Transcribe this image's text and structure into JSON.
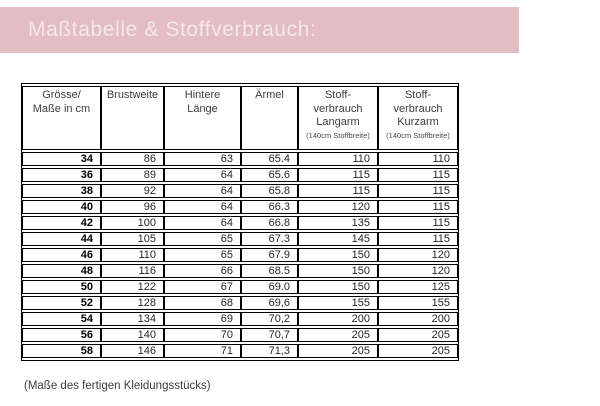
{
  "banner": {
    "title": "Maßtabelle & Stoffverbrauch:",
    "bg_color": "#e2bdc3",
    "text_color": "#f4e9ea"
  },
  "table": {
    "columns": [
      {
        "lines": [
          "Grösse/",
          "Maße in cm"
        ],
        "sub": ""
      },
      {
        "lines": [
          "Brustweite"
        ],
        "sub": ""
      },
      {
        "lines": [
          "Hintere",
          "Länge"
        ],
        "sub": ""
      },
      {
        "lines": [
          "Ärmel"
        ],
        "sub": ""
      },
      {
        "lines": [
          "Stoff-",
          "verbrauch",
          "Langarm"
        ],
        "sub": "(140cm Stoffbreite)"
      },
      {
        "lines": [
          "Stoff-",
          "verbrauch",
          "Kurzarm"
        ],
        "sub": "(140cm Stoffbreite)"
      }
    ],
    "rows": [
      [
        "34",
        "86",
        "63",
        "65.4",
        "110",
        "110"
      ],
      [
        "36",
        "89",
        "64",
        "65.6",
        "115",
        "115"
      ],
      [
        "38",
        "92",
        "64",
        "65.8",
        "115",
        "115"
      ],
      [
        "40",
        "96",
        "64",
        "66.3",
        "120",
        "115"
      ],
      [
        "42",
        "100",
        "64",
        "66.8",
        "135",
        "115"
      ],
      [
        "44",
        "105",
        "65",
        "67.3",
        "145",
        "115"
      ],
      [
        "46",
        "110",
        "65",
        "67.9",
        "150",
        "120"
      ],
      [
        "48",
        "116",
        "66",
        "68.5",
        "150",
        "120"
      ],
      [
        "50",
        "122",
        "67",
        "69.0",
        "150",
        "125"
      ],
      [
        "52",
        "128",
        "68",
        "69,6",
        "155",
        "155"
      ],
      [
        "54",
        "134",
        "69",
        "70,2",
        "200",
        "200"
      ],
      [
        "56",
        "140",
        "70",
        "70,7",
        "205",
        "205"
      ],
      [
        "58",
        "146",
        "71",
        "71,3",
        "205",
        "205"
      ]
    ]
  },
  "footer_note": "(Maße des fertigen Kleidungsstücks)"
}
